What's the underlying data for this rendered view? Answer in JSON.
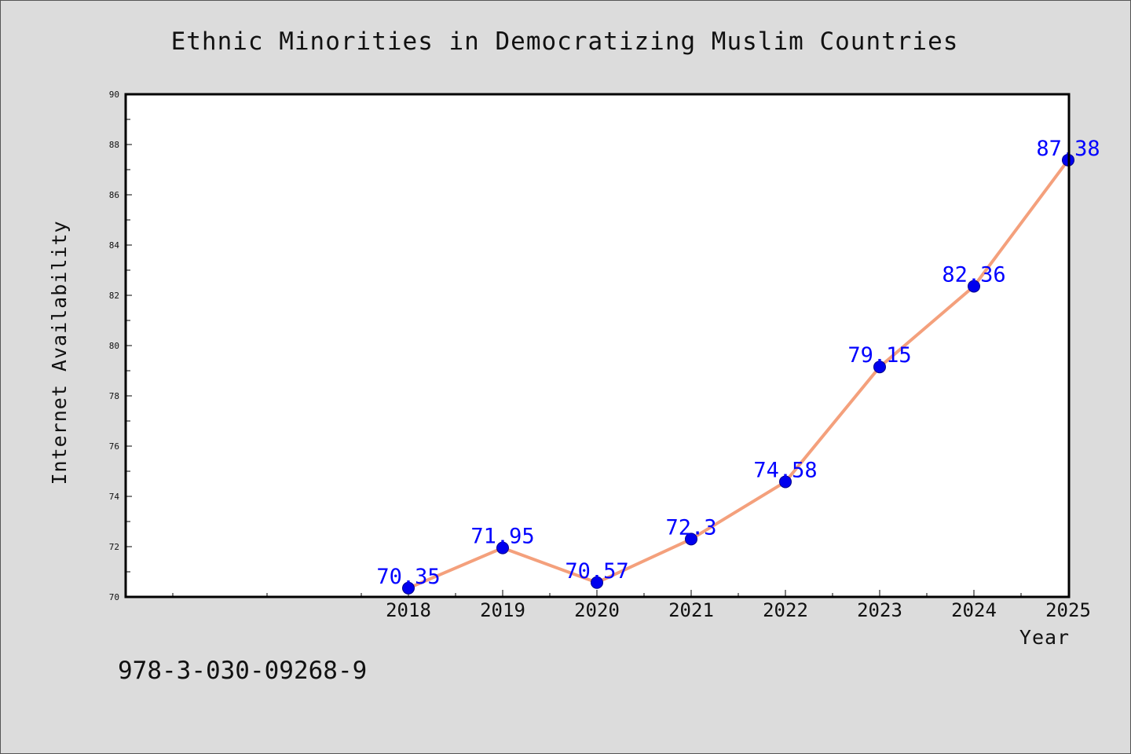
{
  "footer_text": "978-3-030-09268-9",
  "chart_data": {
    "type": "line",
    "title": "Ethnic Minorities in Democratizing Muslim Countries",
    "xlabel": "Year",
    "ylabel": "Internet Availability",
    "categories": [
      "2018",
      "2019",
      "2020",
      "2021",
      "2022",
      "2023",
      "2024",
      "2025"
    ],
    "series": [
      {
        "values": [
          70.35,
          71.95,
          70.57,
          72.3,
          74.58,
          79.15,
          82.36,
          87.38
        ],
        "data_labels": [
          "70.35",
          "71.95",
          "70.57",
          "72.3",
          "74.58",
          "79.15",
          "82.36",
          "87.38"
        ]
      }
    ],
    "ylim": [
      70,
      90
    ],
    "yticks": [
      "70",
      "72",
      "74",
      "76",
      "78",
      "80",
      "82",
      "84",
      "86",
      "88",
      "90"
    ],
    "x_slots_before_first_category": 2.5,
    "grid": false,
    "colors": {
      "line": "#f4a07c",
      "marker": "#0000ee",
      "marker_edge": "#00008b",
      "data_label": "#0000ff"
    }
  }
}
